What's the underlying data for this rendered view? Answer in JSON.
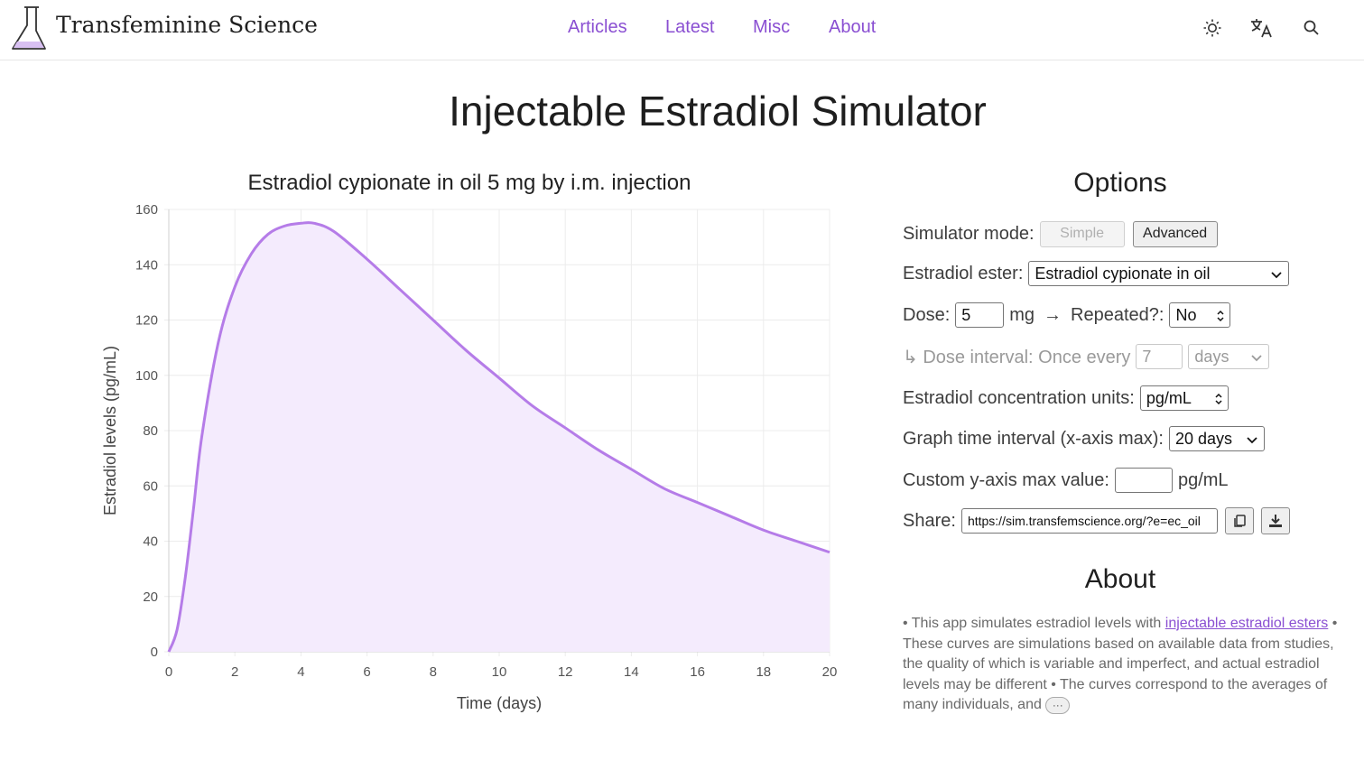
{
  "header": {
    "site_name": "Transfeminine Science",
    "nav": [
      "Articles",
      "Latest",
      "Misc",
      "About"
    ],
    "icons": [
      "theme-toggle-icon",
      "translate-icon",
      "search-icon"
    ]
  },
  "page": {
    "title": "Injectable Estradiol Simulator"
  },
  "options": {
    "heading": "Options",
    "mode_label": "Simulator mode:",
    "mode_simple": "Simple",
    "mode_advanced": "Advanced",
    "ester_label": "Estradiol ester:",
    "ester_value": "Estradiol cypionate in oil",
    "dose_label": "Dose:",
    "dose_value": "5",
    "dose_unit": "mg",
    "arrow": "→",
    "repeated_label": "Repeated?:",
    "repeated_value": "No",
    "interval_label": "↳ Dose interval: Once every",
    "interval_value": "7",
    "interval_unit": "days",
    "units_label": "Estradiol concentration units:",
    "units_value": "pg/mL",
    "time_label": "Graph time interval (x-axis max):",
    "time_value": "20 days",
    "ymax_label": "Custom y-axis max value:",
    "ymax_value": "",
    "ymax_unit": "pg/mL",
    "share_label": "Share:",
    "share_value": "https://sim.transfemscience.org/?e=ec_oil"
  },
  "about": {
    "heading": "About",
    "text_1": "• This app simulates estradiol levels with ",
    "link": "injectable estradiol esters",
    "text_2": " • These curves are simulations based on available data from studies, the quality of which is variable and imperfect, and actual estradiol levels may be different • The curves correspond to the averages of many individuals, and ",
    "more": "···"
  },
  "colors": {
    "accent": "#8a4fd2",
    "curve": "#b57ce8",
    "fill": "#f4ebfd"
  },
  "chart_data": {
    "type": "area",
    "title": "Estradiol cypionate in oil 5 mg by i.m. injection",
    "xlabel": "Time (days)",
    "ylabel": "Estradiol levels (pg/mL)",
    "xlim": [
      0,
      20
    ],
    "ylim": [
      0,
      160
    ],
    "xticks": [
      0,
      2,
      4,
      6,
      8,
      10,
      12,
      14,
      16,
      18,
      20
    ],
    "yticks": [
      0,
      20,
      40,
      60,
      80,
      100,
      120,
      140,
      160
    ],
    "grid": true,
    "x": [
      0,
      0.25,
      0.5,
      0.75,
      1,
      1.5,
      2,
      2.5,
      3,
      3.5,
      4,
      4.4,
      5,
      6,
      7,
      8,
      9,
      10,
      11,
      12,
      13,
      14,
      15,
      16,
      17,
      18,
      19,
      20
    ],
    "y": [
      0,
      8,
      27,
      52,
      78,
      112,
      132,
      144,
      151,
      154,
      155,
      155,
      152,
      142,
      131,
      120,
      109,
      99,
      89,
      81,
      73,
      66,
      59,
      54,
      49,
      44,
      40,
      36
    ]
  }
}
